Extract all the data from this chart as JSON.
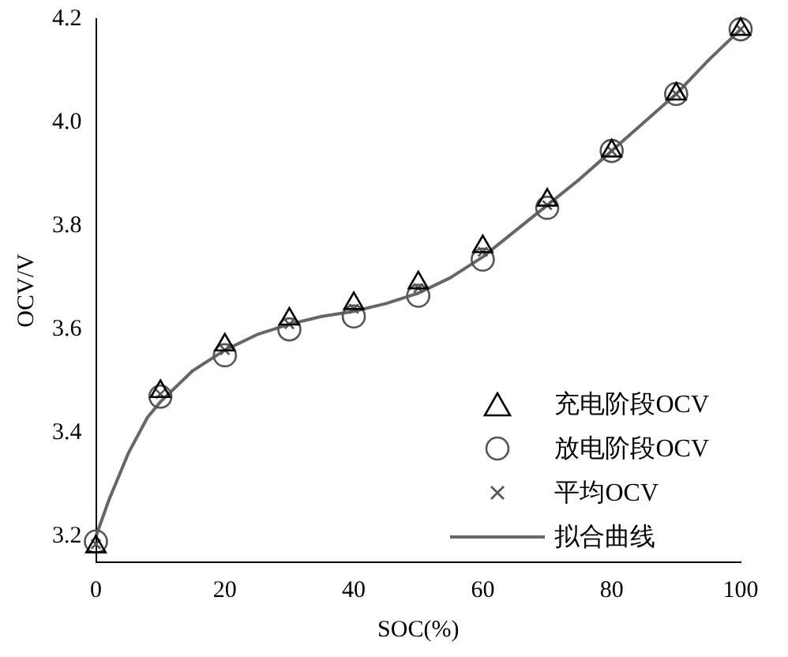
{
  "chart_data": {
    "type": "scatter",
    "xlabel": "SOC(%)",
    "ylabel": "OCV/V",
    "xlim": [
      0,
      100
    ],
    "xticks": [
      0,
      20,
      40,
      60,
      80,
      100
    ],
    "ylim": [
      3.15,
      4.2
    ],
    "yticks": [
      3.2,
      3.4,
      3.6,
      3.8,
      {
        "value": 4,
        "label": "4.0"
      },
      4.2
    ],
    "grid": false,
    "legend": "bottom right",
    "series": [
      {
        "name": "充电阶段OCV",
        "type": "scatter",
        "marker": "triangle",
        "color": "#000000",
        "x": [
          0,
          10,
          20,
          30,
          40,
          50,
          60,
          70,
          80,
          90,
          100
        ],
        "values": [
          3.18,
          3.48,
          3.57,
          3.62,
          3.65,
          3.69,
          3.76,
          3.85,
          3.945,
          4.055,
          4.18
        ]
      },
      {
        "name": "放电阶段OCV",
        "type": "scatter",
        "marker": "circle",
        "color": "#555555",
        "x": [
          0,
          10,
          20,
          30,
          40,
          50,
          60,
          70,
          80,
          90,
          100
        ],
        "values": [
          3.19,
          3.47,
          3.55,
          3.6,
          3.625,
          3.665,
          3.735,
          3.835,
          3.945,
          4.055,
          4.18
        ]
      },
      {
        "name": "平均OCV",
        "type": "scatter",
        "marker": "cross",
        "color": "#555555",
        "x": [
          0,
          10,
          20,
          30,
          40,
          50,
          60,
          70,
          80,
          90,
          100
        ],
        "values": [
          3.185,
          3.475,
          3.56,
          3.61,
          3.64,
          3.68,
          3.75,
          3.84,
          3.945,
          4.055,
          4.18
        ]
      },
      {
        "name": "拟合曲线",
        "type": "line",
        "marker": "none",
        "color": "#666666",
        "x": [
          0,
          2,
          5,
          8,
          10,
          15,
          20,
          25,
          30,
          35,
          40,
          45,
          50,
          55,
          60,
          65,
          70,
          75,
          80,
          85,
          90,
          95,
          100
        ],
        "values": [
          3.2,
          3.27,
          3.36,
          3.43,
          3.46,
          3.52,
          3.56,
          3.59,
          3.61,
          3.625,
          3.635,
          3.65,
          3.67,
          3.7,
          3.74,
          3.79,
          3.84,
          3.89,
          3.945,
          4.0,
          4.055,
          4.12,
          4.18
        ]
      }
    ]
  }
}
